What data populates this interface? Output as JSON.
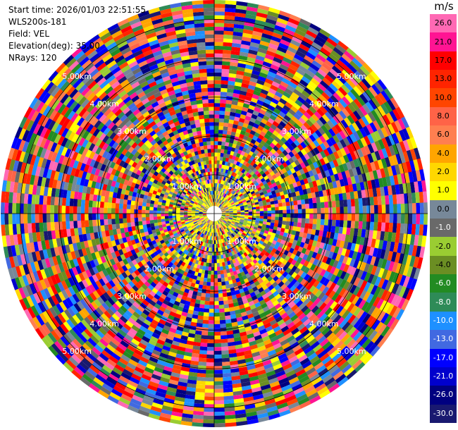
{
  "info": {
    "start_time": "Start time: 2026/01/03 22:51:55",
    "instrument": "WLS200s-181",
    "field": "Field: VEL",
    "elevation": "Elevation(deg): 35.00",
    "nrays": "NRays: 120"
  },
  "chart_data": {
    "type": "heatmap",
    "projection": "polar-ppi",
    "field": "VEL",
    "units": "m/s",
    "n_rays": 120,
    "max_range_km": 5.5,
    "range_rings_km": [
      1,
      2,
      3,
      4,
      5
    ],
    "ring_labels": [
      "1.00km",
      "2.00km",
      "3.00km",
      "4.00km",
      "5.00km"
    ],
    "colorbar": {
      "unit": "m/s",
      "ticks": [
        "26.0",
        "21.0",
        "17.0",
        "13.0",
        "10.0",
        "8.0",
        "6.0",
        "4.0",
        "2.0",
        "1.0",
        "0.0",
        "-1.0",
        "-2.0",
        "-4.0",
        "-6.0",
        "-8.0",
        "-10.0",
        "-13.0",
        "-17.0",
        "-21.0",
        "-26.0",
        "-30.0"
      ],
      "colors": [
        "#ff69b4",
        "#ff1493",
        "#ff0000",
        "#ff2400",
        "#ff4500",
        "#ff6347",
        "#ff7f50",
        "#ffa500",
        "#ffd700",
        "#ffff00",
        "#778899",
        "#696969",
        "#9acd32",
        "#6b8e23",
        "#228b22",
        "#2e8b57",
        "#1e90ff",
        "#4169e1",
        "#0000ff",
        "#0000cd",
        "#000080",
        "#191970"
      ]
    },
    "near_range_pattern": "small velocities (yellow and yellow-green) near the center, mixed noisy velocities at longer ranges"
  }
}
